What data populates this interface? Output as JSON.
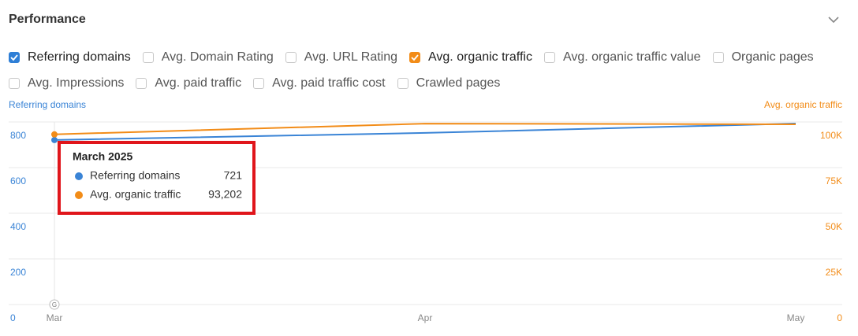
{
  "header": {
    "title": "Performance"
  },
  "checkboxes": [
    [
      {
        "label": "Referring domains",
        "checked": true,
        "color": "#2f7fd6"
      },
      {
        "label": "Avg. Domain Rating",
        "checked": false
      },
      {
        "label": "Avg. URL Rating",
        "checked": false
      },
      {
        "label": "Avg. organic traffic",
        "checked": true,
        "color": "#f28c18"
      },
      {
        "label": "Avg. organic traffic value",
        "checked": false
      },
      {
        "label": "Organic pages",
        "checked": false
      }
    ],
    [
      {
        "label": "Avg. Impressions",
        "checked": false
      },
      {
        "label": "Avg. paid traffic",
        "checked": false
      },
      {
        "label": "Avg. paid traffic cost",
        "checked": false
      },
      {
        "label": "Crawled pages",
        "checked": false
      }
    ]
  ],
  "chart_data": {
    "type": "line",
    "ylabel": "Referring domains",
    "y2label": "Avg. organic traffic",
    "categories": [
      "Mar",
      "Apr",
      "May"
    ],
    "series": [
      {
        "name": "Referring domains",
        "color": "#3a84d6",
        "values": [
          721,
          752,
          793
        ]
      },
      {
        "name": "Avg. organic traffic",
        "color": "#f28c18",
        "axis": "y2",
        "values": [
          93202,
          99100,
          98700
        ],
        "value_labels": [
          "93,202",
          null,
          null
        ]
      }
    ],
    "ylim": [
      0,
      800
    ],
    "yticks": [
      0,
      200,
      400,
      600,
      800
    ],
    "y2lim": [
      0,
      100000
    ],
    "y2ticks": [
      0,
      {
        "value": 25000,
        "label": "25K"
      },
      {
        "value": 50000,
        "label": "50K"
      },
      {
        "value": 75000,
        "label": "75K"
      },
      {
        "value": 100000,
        "label": "100K"
      }
    ],
    "grid": true,
    "annotation": "G",
    "tooltip": {
      "title": "March 2025",
      "index": 0
    }
  }
}
